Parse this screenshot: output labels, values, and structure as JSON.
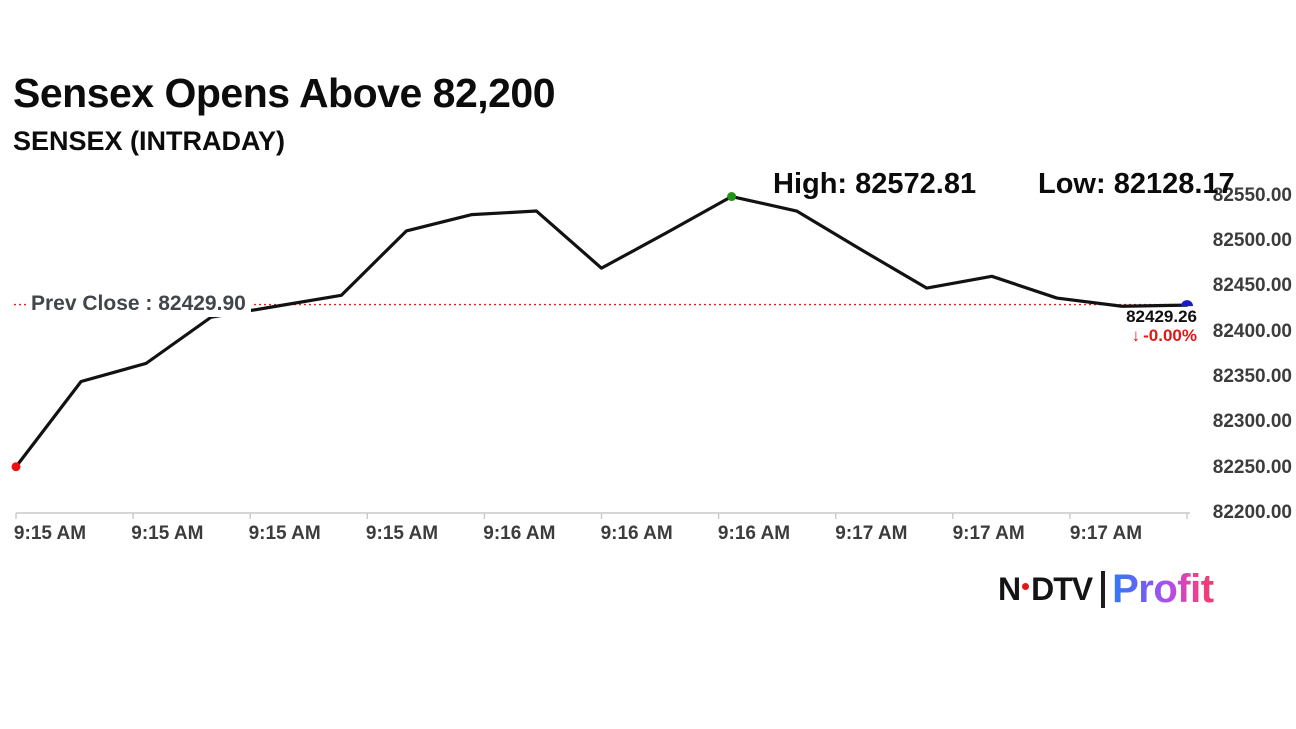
{
  "header": {
    "title": "Sensex Opens Above 82,200",
    "subtitle": "SENSEX (INTRADAY)"
  },
  "annotations": {
    "high_label": "High: 82572.81",
    "low_label": "Low: 82128.17",
    "prev_close_label": "Prev Close : 82429.90",
    "last_price": "82429.26",
    "change_arrow": "↓",
    "change_pct": "-0.00%"
  },
  "chart_data": {
    "type": "line",
    "title": "SENSEX (INTRADAY)",
    "x_tick_labels": [
      "9:15 AM",
      "9:15 AM",
      "9:15 AM",
      "9:15 AM",
      "9:16 AM",
      "9:16 AM",
      "9:16 AM",
      "9:17 AM",
      "9:17 AM",
      "9:17 AM"
    ],
    "y_tick_labels": [
      "82550.00",
      "82500.00",
      "82450.00",
      "82400.00",
      "82350.00",
      "82300.00",
      "82250.00",
      "82200.00"
    ],
    "ylim": [
      82200,
      82550
    ],
    "prev_close": 82429.9,
    "high": 82572.81,
    "low": 82128.17,
    "last": 82429.26,
    "grid": false,
    "legend": "none",
    "line_color": "#121212",
    "axis_color": "#c9c9c9",
    "prev_close_line_color": "#e02020",
    "series": [
      {
        "name": "SENSEX",
        "values": [
          82251,
          82345,
          82365,
          82416,
          82428,
          82440,
          82511,
          82529,
          82533,
          82470,
          82509,
          82549,
          82533,
          82490,
          82448,
          82461,
          82437,
          82428,
          82429.26
        ]
      }
    ],
    "markers": [
      {
        "point_index": 0,
        "shape": "circle",
        "color": "#ee1111",
        "name": "open-marker"
      },
      {
        "point_index": 11,
        "shape": "circle",
        "color": "#1f9417",
        "name": "high-marker"
      },
      {
        "point_index": 18,
        "shape": "semicircle-top",
        "color": "#1a1acc",
        "name": "last-marker"
      }
    ]
  },
  "logo": {
    "brand_n": "N",
    "brand_rest": "DTV",
    "product": "Profit"
  }
}
